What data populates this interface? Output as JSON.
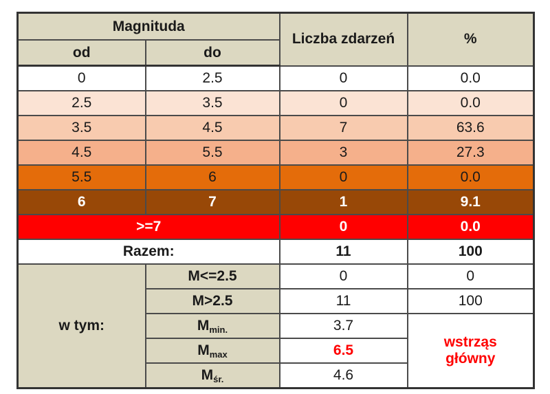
{
  "header": {
    "magnitude": "Magnituda",
    "from": "od",
    "to": "do",
    "events": "Liczba zdarzeń",
    "percent": "%"
  },
  "rows": [
    {
      "od": "0",
      "do": "2.5",
      "count": "0",
      "pct": "0.0"
    },
    {
      "od": "2.5",
      "do": "3.5",
      "count": "0",
      "pct": "0.0"
    },
    {
      "od": "3.5",
      "do": "4.5",
      "count": "7",
      "pct": "63.6"
    },
    {
      "od": "4.5",
      "do": "5.5",
      "count": "3",
      "pct": "27.3"
    },
    {
      "od": "5.5",
      "do": "6",
      "count": "0",
      "pct": "0.0"
    },
    {
      "od": "6",
      "do": "7",
      "count": "1",
      "pct": "9.1"
    }
  ],
  "ge7": {
    "label": ">=7",
    "count": "0",
    "pct": "0.0"
  },
  "total": {
    "label": "Razem:",
    "count": "11",
    "pct": "100"
  },
  "breakdown": {
    "label": "w tym:",
    "le25": {
      "label": "M<=2.5",
      "count": "0",
      "pct": "0"
    },
    "gt25": {
      "label": "M>2.5",
      "count": "11",
      "pct": "100"
    },
    "mmin": {
      "base": "M",
      "sub": "min.",
      "value": "3.7"
    },
    "mmax": {
      "base": "M",
      "sub": "max",
      "value": "6.5"
    },
    "mavg": {
      "base": "M",
      "sub": "śr.",
      "value": "4.6"
    },
    "note_line1": "wstrząs",
    "note_line2": "główny"
  },
  "colors": {
    "header_bg": "#dcd8c1",
    "row_colors": [
      "#ffffff",
      "#fbe3d4",
      "#f8cbaf",
      "#f5b08b",
      "#e46c0a",
      "#984807"
    ],
    "ge7_bg": "#ff0000",
    "highlight_red": "#ff0000"
  }
}
